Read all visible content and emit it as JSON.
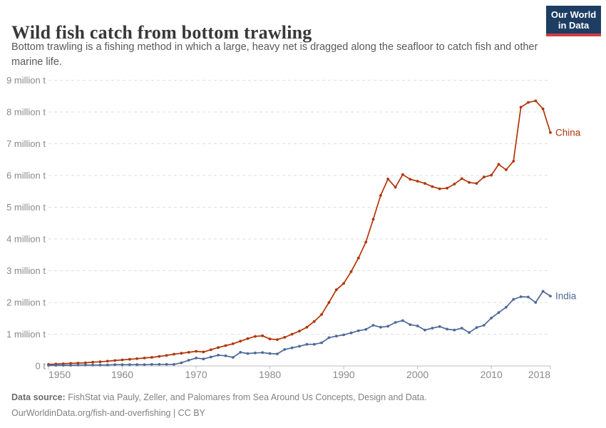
{
  "header": {
    "title": "Wild fish catch from bottom trawling",
    "subtitle": "Bottom trawling is a fishing method in which a large, heavy net is dragged along the seafloor to catch fish and other marine life."
  },
  "logo": {
    "line1": "Our World",
    "line2": "in Data",
    "bg_color": "#1d3d63",
    "accent_color": "#cf3b44"
  },
  "footer": {
    "source_prefix": "Data source:",
    "source_text": " FishStat via Pauly, Zeller, and Palomares from Sea Around Us Concepts, Design and Data.",
    "license_line": "OurWorldinData.org/fish-and-overfishing | CC BY"
  },
  "chart_data": {
    "type": "line",
    "title": "Wild fish catch from bottom trawling",
    "xlabel": "",
    "ylabel": "",
    "unit": "million t",
    "grid": true,
    "legend_position": "end-of-line",
    "x_range": [
      1950,
      2018
    ],
    "ylim": [
      0,
      9
    ],
    "x_ticks": [
      1950,
      1960,
      1970,
      1980,
      1990,
      2000,
      2010,
      2018
    ],
    "y_ticks": [
      0,
      1,
      2,
      3,
      4,
      5,
      6,
      7,
      8,
      9
    ],
    "y_tick_labels": [
      "0 t",
      "1 million t",
      "2 million t",
      "3 million t",
      "4 million t",
      "5 million t",
      "6 million t",
      "7 million t",
      "8 million t",
      "9 million t"
    ],
    "years": [
      1950,
      1951,
      1952,
      1953,
      1954,
      1955,
      1956,
      1957,
      1958,
      1959,
      1960,
      1961,
      1962,
      1963,
      1964,
      1965,
      1966,
      1967,
      1968,
      1969,
      1970,
      1971,
      1972,
      1973,
      1974,
      1975,
      1976,
      1977,
      1978,
      1979,
      1980,
      1981,
      1982,
      1983,
      1984,
      1985,
      1986,
      1987,
      1988,
      1989,
      1990,
      1991,
      1992,
      1993,
      1994,
      1995,
      1996,
      1997,
      1998,
      1999,
      2000,
      2001,
      2002,
      2003,
      2004,
      2005,
      2006,
      2007,
      2008,
      2009,
      2010,
      2011,
      2012,
      2013,
      2014,
      2015,
      2016,
      2017,
      2018
    ],
    "series": [
      {
        "name": "China",
        "color": "#b13507",
        "values": [
          0.05,
          0.06,
          0.07,
          0.08,
          0.09,
          0.1,
          0.12,
          0.13,
          0.15,
          0.17,
          0.19,
          0.21,
          0.23,
          0.25,
          0.27,
          0.3,
          0.33,
          0.37,
          0.4,
          0.43,
          0.46,
          0.44,
          0.51,
          0.58,
          0.64,
          0.7,
          0.78,
          0.86,
          0.93,
          0.95,
          0.85,
          0.83,
          0.9,
          1.0,
          1.1,
          1.22,
          1.4,
          1.62,
          2.0,
          2.4,
          2.6,
          2.97,
          3.4,
          3.9,
          4.62,
          5.37,
          5.89,
          5.63,
          6.03,
          5.88,
          5.82,
          5.75,
          5.65,
          5.58,
          5.6,
          5.73,
          5.9,
          5.78,
          5.75,
          5.95,
          6.01,
          6.35,
          6.18,
          6.45,
          8.15,
          8.3,
          8.35,
          8.1,
          7.35
        ]
      },
      {
        "name": "India",
        "color": "#4c6a9c",
        "values": [
          0.02,
          0.02,
          0.02,
          0.02,
          0.03,
          0.03,
          0.03,
          0.03,
          0.03,
          0.04,
          0.04,
          0.04,
          0.04,
          0.04,
          0.05,
          0.05,
          0.05,
          0.05,
          0.1,
          0.18,
          0.25,
          0.22,
          0.28,
          0.34,
          0.32,
          0.27,
          0.43,
          0.39,
          0.41,
          0.42,
          0.39,
          0.38,
          0.52,
          0.57,
          0.62,
          0.68,
          0.68,
          0.73,
          0.89,
          0.94,
          0.98,
          1.04,
          1.11,
          1.15,
          1.28,
          1.22,
          1.25,
          1.37,
          1.43,
          1.3,
          1.26,
          1.13,
          1.19,
          1.24,
          1.16,
          1.13,
          1.19,
          1.05,
          1.21,
          1.28,
          1.51,
          1.68,
          1.85,
          2.1,
          2.18,
          2.17,
          2.0,
          2.35,
          2.2
        ]
      }
    ]
  }
}
